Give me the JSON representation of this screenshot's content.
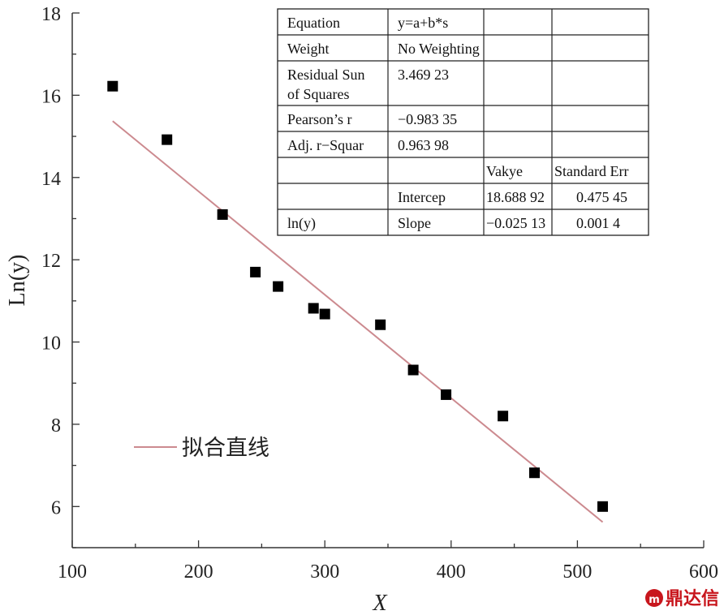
{
  "chart_data": {
    "type": "scatter",
    "title": "",
    "xlabel": "X",
    "ylabel": "Ln(y)",
    "xlim": [
      100,
      600
    ],
    "ylim": [
      5,
      18
    ],
    "xticks": [
      100,
      200,
      300,
      400,
      500,
      600
    ],
    "yticks": [
      6,
      8,
      10,
      12,
      14,
      16,
      18
    ],
    "x_tick_labels": [
      "100",
      "200",
      "300",
      "400",
      "500",
      "600"
    ],
    "y_tick_labels": [
      "6",
      "8",
      "10",
      "12",
      "14",
      "16",
      "18"
    ],
    "grid": false,
    "points": [
      {
        "x": 132,
        "y": 16.22
      },
      {
        "x": 175,
        "y": 14.92
      },
      {
        "x": 219,
        "y": 13.1
      },
      {
        "x": 245,
        "y": 11.7
      },
      {
        "x": 263,
        "y": 11.35
      },
      {
        "x": 291,
        "y": 10.82
      },
      {
        "x": 300,
        "y": 10.68
      },
      {
        "x": 344,
        "y": 10.42
      },
      {
        "x": 370,
        "y": 9.32
      },
      {
        "x": 396,
        "y": 8.72
      },
      {
        "x": 441,
        "y": 8.2
      },
      {
        "x": 466,
        "y": 6.82
      },
      {
        "x": 520,
        "y": 6.0
      }
    ],
    "fit_line": {
      "name": "拟合直线",
      "color": "#cc8a8f",
      "x": [
        132,
        520
      ],
      "intercept": 18.68892,
      "slope": -0.02513
    },
    "legend": {
      "placement": "lower-left",
      "entries": [
        "拟合直线"
      ]
    },
    "marker_color": "#000000",
    "stats_table": {
      "placement": "top-right",
      "rows": [
        [
          "Equation",
          "y=a+b*s",
          "",
          ""
        ],
        [
          "Weight",
          "No Weighting",
          "",
          ""
        ],
        [
          "Residual Sun\nof Squares",
          "3.469 23",
          "",
          ""
        ],
        [
          "Pearson’s r",
          "−0.983 35",
          "",
          ""
        ],
        [
          "Adj. r−Squar",
          "0.963 98",
          "",
          ""
        ],
        [
          "",
          "",
          "Vakye",
          "Standard Err"
        ],
        [
          "",
          "Intercep",
          "18.688 92",
          "0.475 45"
        ],
        [
          "ln(y)",
          "Slope",
          "−0.025 13",
          "0.001 4"
        ]
      ]
    }
  },
  "watermark": {
    "text": "鼎达信",
    "color": "#c8161d"
  }
}
